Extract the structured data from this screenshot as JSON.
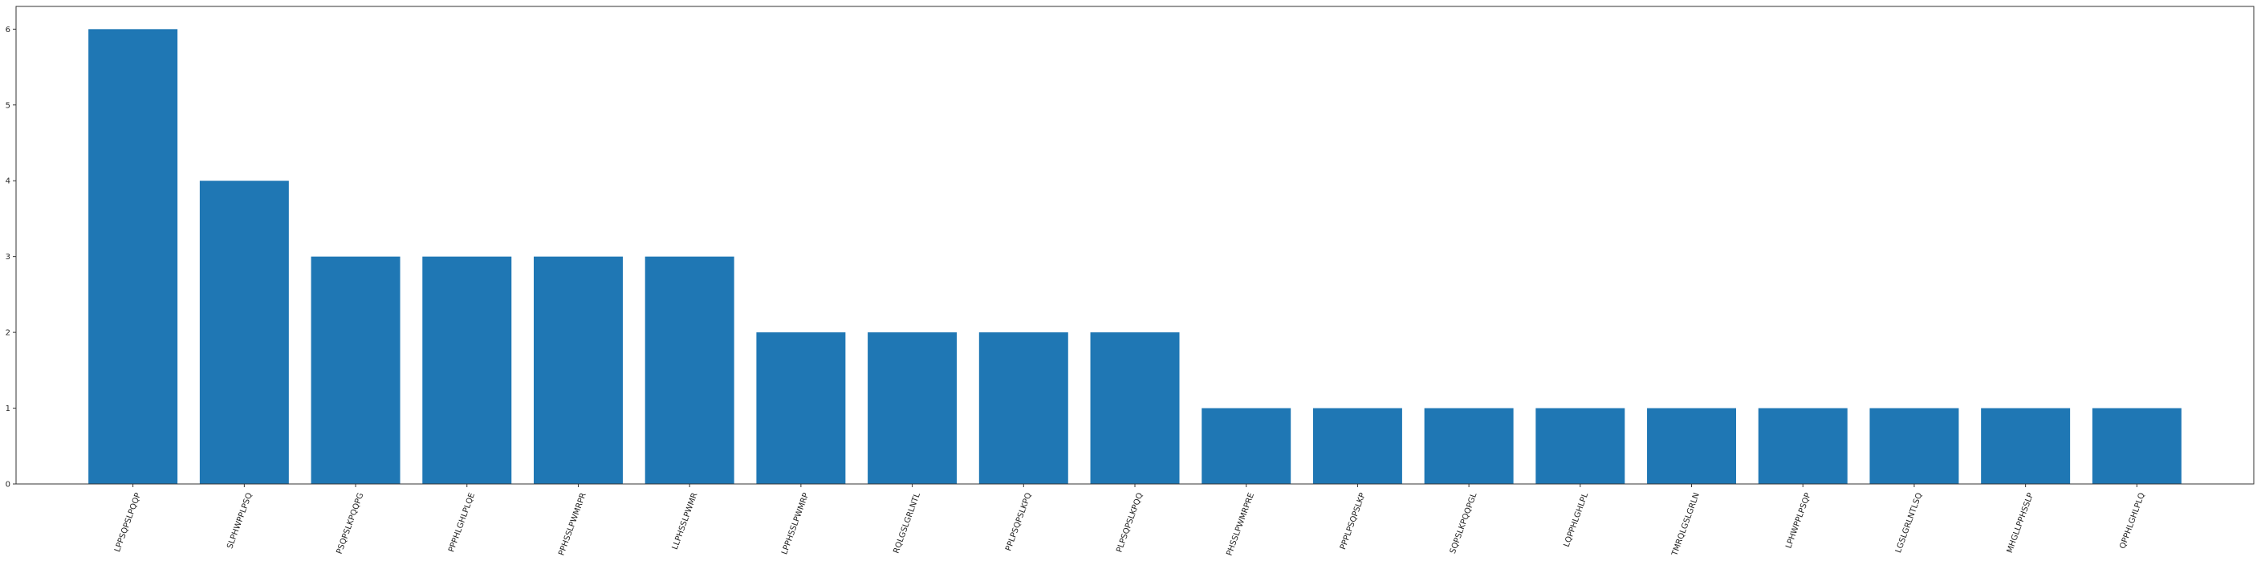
{
  "chart_data": {
    "type": "bar",
    "title": "",
    "xlabel": "",
    "ylabel": "",
    "categories": [
      "LPPSQPSLPQQP",
      "SLPHWPPLPSQ",
      "PSQPSLKPQQPG",
      "PPPHLGHLPLQE",
      "PPHSSLPWMRPR",
      "LLPHSSLPWMR",
      "LPPHSSLPWMRP",
      "RQLGSLGRLNTL",
      "PPLPSQPSLKPQ",
      "PLPSQPSLKPQQ",
      "PHSSLPWMRPRE",
      "PPPLPSQPSLKP",
      "SQPSLKPQQPGL",
      "LQPPHLGHLPL",
      "TMRQLGSLGRLN",
      "LPHWPPLPSQP",
      "LGSLGRLNTLSQ",
      "MHGLLPPHSSLP",
      "QPPHLGHLPLQ"
    ],
    "values": [
      6,
      4,
      3,
      3,
      3,
      3,
      2,
      2,
      2,
      2,
      1,
      1,
      1,
      1,
      1,
      1,
      1,
      1,
      1
    ],
    "ylim": [
      0,
      6.3
    ],
    "yticks": [
      0,
      1,
      2,
      3,
      4,
      5,
      6
    ],
    "bar_color": "#1f77b4",
    "grid": false,
    "legend": "none"
  }
}
